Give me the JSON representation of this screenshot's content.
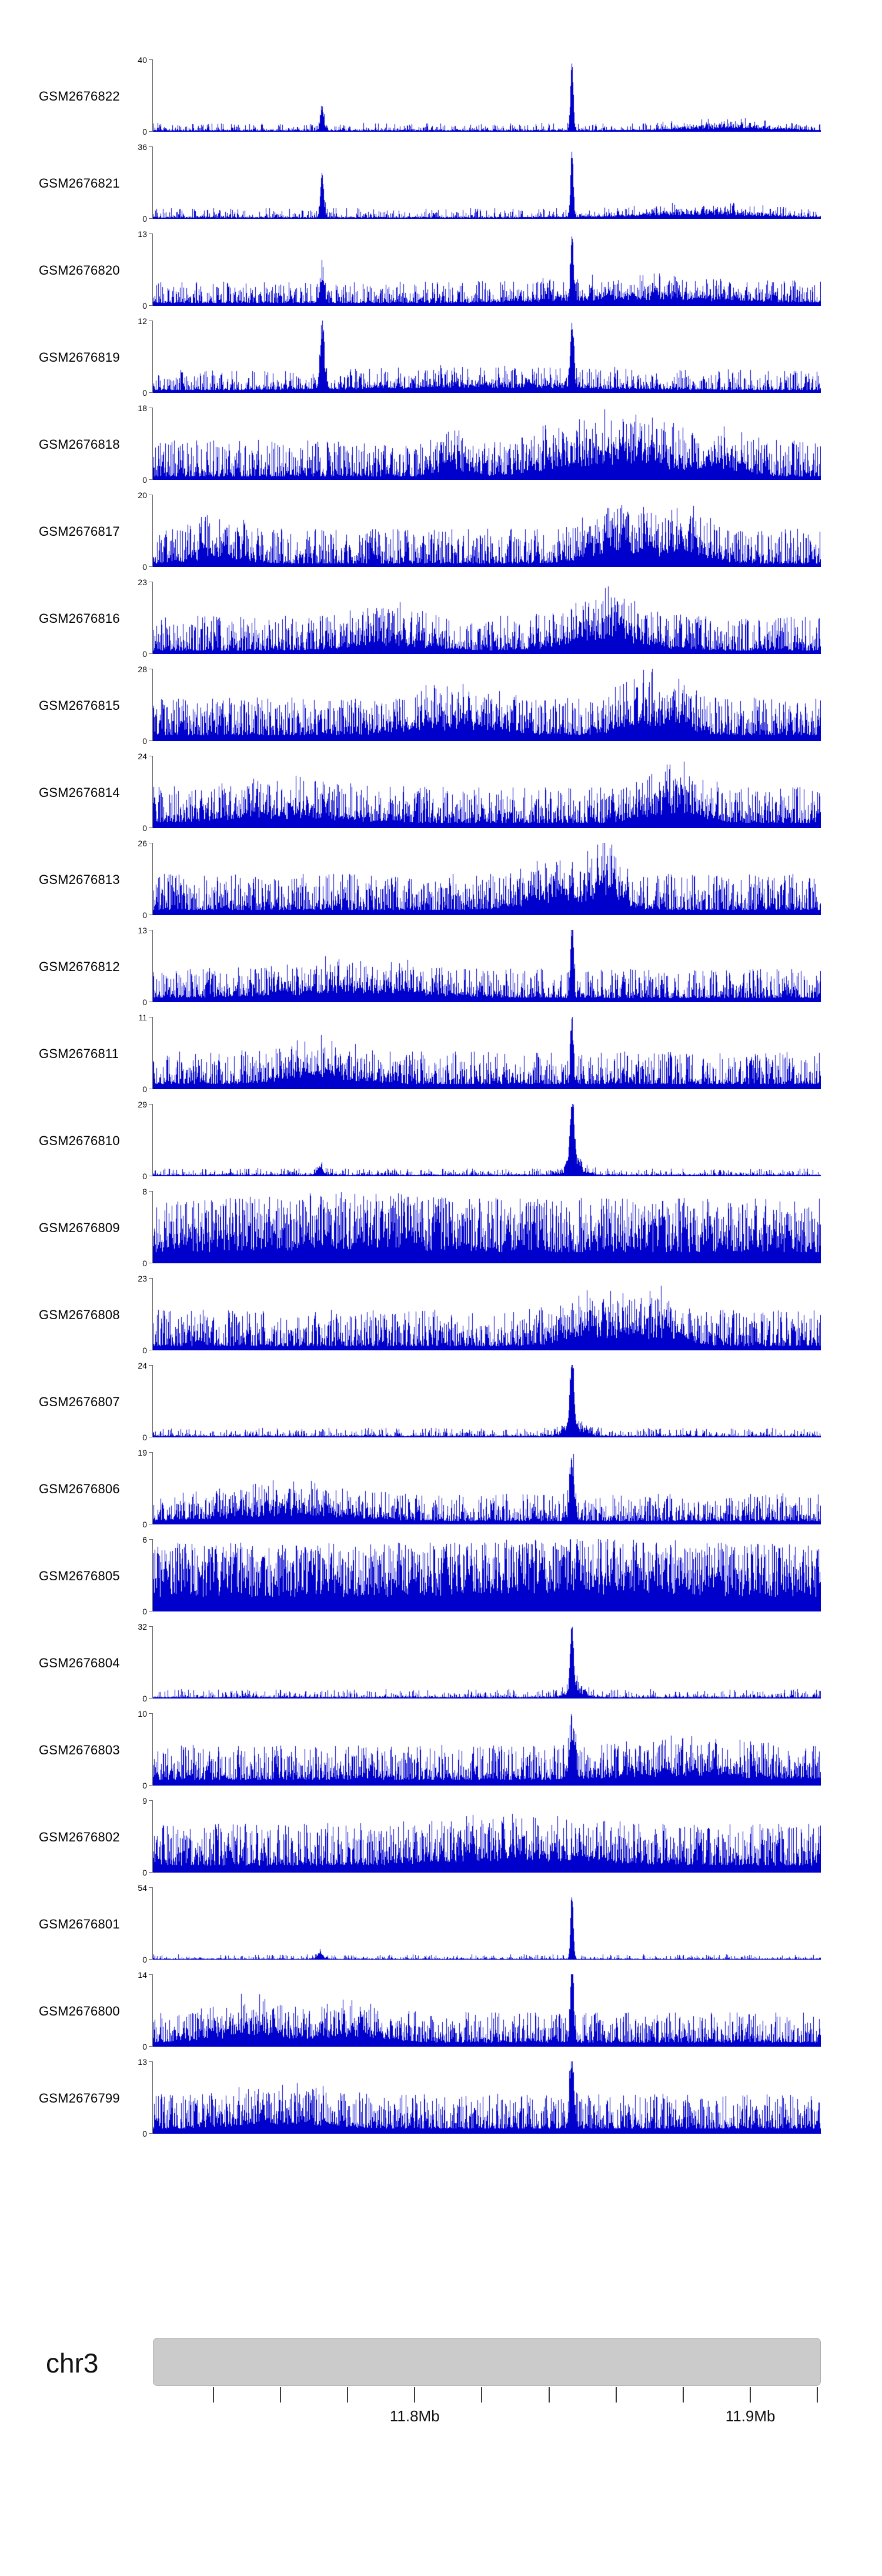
{
  "chart_data": {
    "type": "area",
    "title": "",
    "description": "Genome browser signal tracks (coverage histograms) for 24 GSM samples over a region of chromosome 3",
    "signal_color": "#0000cc",
    "region": {
      "chromosome": "chr3",
      "start_mb": 11.722,
      "end_mb": 11.921
    },
    "axis": {
      "zero_label": "0",
      "tick_interval_mb": 0.02,
      "labeled_ticks": [
        {
          "mb": 11.8,
          "label": "11.8Mb"
        },
        {
          "mb": 11.9,
          "label": "11.9Mb"
        }
      ]
    },
    "ideogram": {
      "label": "chr3",
      "color": "#cbcbcb"
    },
    "tracks": [
      {
        "label": "GSM2676822",
        "ymax": 40,
        "floor": 0.02,
        "amp": 0.1,
        "exp": 5,
        "peaks": [
          {
            "x": 0.253,
            "h": 0.3,
            "w": 0.0025
          },
          {
            "x": 0.627,
            "h": 0.95,
            "w": 0.002
          },
          {
            "x": 0.86,
            "h": 0.1,
            "w": 0.06
          }
        ]
      },
      {
        "label": "GSM2676821",
        "ymax": 36,
        "floor": 0.02,
        "amp": 0.13,
        "exp": 4.5,
        "peaks": [
          {
            "x": 0.253,
            "h": 0.6,
            "w": 0.0025
          },
          {
            "x": 0.627,
            "h": 0.95,
            "w": 0.002
          },
          {
            "x": 0.82,
            "h": 0.12,
            "w": 0.08
          }
        ]
      },
      {
        "label": "GSM2676820",
        "ymax": 13,
        "floor": 0.04,
        "amp": 0.3,
        "exp": 2.8,
        "peaks": [
          {
            "x": 0.253,
            "h": 0.35,
            "w": 0.003
          },
          {
            "x": 0.627,
            "h": 0.92,
            "w": 0.002
          },
          {
            "x": 0.74,
            "h": 0.15,
            "w": 0.12
          }
        ]
      },
      {
        "label": "GSM2676819",
        "ymax": 12,
        "floor": 0.04,
        "amp": 0.28,
        "exp": 3,
        "peaks": [
          {
            "x": 0.253,
            "h": 0.8,
            "w": 0.003
          },
          {
            "x": 0.627,
            "h": 0.92,
            "w": 0.0025
          },
          {
            "x": 0.5,
            "h": 0.1,
            "w": 0.15
          }
        ]
      },
      {
        "label": "GSM2676818",
        "ymax": 18,
        "floor": 0.05,
        "amp": 0.5,
        "exp": 2.2,
        "peaks": [
          {
            "x": 0.45,
            "h": 0.3,
            "w": 0.02
          },
          {
            "x": 0.63,
            "h": 0.4,
            "w": 0.05
          },
          {
            "x": 0.73,
            "h": 0.5,
            "w": 0.04
          },
          {
            "x": 0.85,
            "h": 0.35,
            "w": 0.03
          }
        ]
      },
      {
        "label": "GSM2676817",
        "ymax": 20,
        "floor": 0.05,
        "amp": 0.48,
        "exp": 2.2,
        "peaks": [
          {
            "x": 0.1,
            "h": 0.3,
            "w": 0.03
          },
          {
            "x": 0.7,
            "h": 0.55,
            "w": 0.04
          },
          {
            "x": 0.8,
            "h": 0.4,
            "w": 0.03
          }
        ]
      },
      {
        "label": "GSM2676816",
        "ymax": 23,
        "floor": 0.05,
        "amp": 0.48,
        "exp": 2.2,
        "peaks": [
          {
            "x": 0.35,
            "h": 0.25,
            "w": 0.05
          },
          {
            "x": 0.68,
            "h": 0.5,
            "w": 0.05
          }
        ]
      },
      {
        "label": "GSM2676815",
        "ymax": 28,
        "floor": 0.08,
        "amp": 0.52,
        "exp": 1.9,
        "peaks": [
          {
            "x": 0.45,
            "h": 0.28,
            "w": 0.06
          },
          {
            "x": 0.75,
            "h": 0.45,
            "w": 0.04
          }
        ]
      },
      {
        "label": "GSM2676814",
        "ymax": 24,
        "floor": 0.07,
        "amp": 0.5,
        "exp": 2,
        "peaks": [
          {
            "x": 0.2,
            "h": 0.2,
            "w": 0.08
          },
          {
            "x": 0.78,
            "h": 0.5,
            "w": 0.035
          }
        ]
      },
      {
        "label": "GSM2676813",
        "ymax": 26,
        "floor": 0.07,
        "amp": 0.5,
        "exp": 2,
        "peaks": [
          {
            "x": 0.62,
            "h": 0.35,
            "w": 0.05
          },
          {
            "x": 0.68,
            "h": 0.55,
            "w": 0.015
          }
        ]
      },
      {
        "label": "GSM2676812",
        "ymax": 13,
        "floor": 0.06,
        "amp": 0.4,
        "exp": 2.3,
        "peaks": [
          {
            "x": 0.3,
            "h": 0.2,
            "w": 0.1
          },
          {
            "x": 0.627,
            "h": 0.92,
            "w": 0.002
          }
        ]
      },
      {
        "label": "GSM2676811",
        "ymax": 11,
        "floor": 0.07,
        "amp": 0.45,
        "exp": 2.2,
        "peaks": [
          {
            "x": 0.25,
            "h": 0.28,
            "w": 0.05
          },
          {
            "x": 0.627,
            "h": 0.88,
            "w": 0.002
          }
        ]
      },
      {
        "label": "GSM2676810",
        "ymax": 29,
        "floor": 0.02,
        "amp": 0.09,
        "exp": 5,
        "peaks": [
          {
            "x": 0.25,
            "h": 0.12,
            "w": 0.004
          },
          {
            "x": 0.627,
            "h": 0.95,
            "w": 0.003
          },
          {
            "x": 0.63,
            "h": 0.3,
            "w": 0.012
          }
        ]
      },
      {
        "label": "GSM2676809",
        "ymax": 8,
        "floor": 0.15,
        "amp": 0.75,
        "exp": 1.25,
        "peaks": [
          {
            "x": 0.3,
            "h": 0.12,
            "w": 0.1
          }
        ]
      },
      {
        "label": "GSM2676808",
        "ymax": 23,
        "floor": 0.06,
        "amp": 0.5,
        "exp": 2,
        "peaks": [
          {
            "x": 0.66,
            "h": 0.45,
            "w": 0.04
          },
          {
            "x": 0.76,
            "h": 0.35,
            "w": 0.03
          }
        ]
      },
      {
        "label": "GSM2676807",
        "ymax": 24,
        "floor": 0.02,
        "amp": 0.11,
        "exp": 4.5,
        "peaks": [
          {
            "x": 0.627,
            "h": 0.93,
            "w": 0.003
          },
          {
            "x": 0.632,
            "h": 0.25,
            "w": 0.014
          }
        ]
      },
      {
        "label": "GSM2676806",
        "ymax": 19,
        "floor": 0.05,
        "amp": 0.38,
        "exp": 2.4,
        "peaks": [
          {
            "x": 0.2,
            "h": 0.25,
            "w": 0.08
          },
          {
            "x": 0.627,
            "h": 0.8,
            "w": 0.003
          }
        ]
      },
      {
        "label": "GSM2676805",
        "ymax": 6,
        "floor": 0.2,
        "amp": 0.75,
        "exp": 1.1,
        "peaks": [
          {
            "x": 0.65,
            "h": 0.12,
            "w": 0.1
          }
        ]
      },
      {
        "label": "GSM2676804",
        "ymax": 32,
        "floor": 0.02,
        "amp": 0.11,
        "exp": 4.5,
        "peaks": [
          {
            "x": 0.627,
            "h": 0.93,
            "w": 0.0025
          },
          {
            "x": 0.632,
            "h": 0.2,
            "w": 0.012
          }
        ]
      },
      {
        "label": "GSM2676803",
        "ymax": 10,
        "floor": 0.08,
        "amp": 0.48,
        "exp": 2,
        "peaks": [
          {
            "x": 0.627,
            "h": 0.6,
            "w": 0.004
          },
          {
            "x": 0.8,
            "h": 0.18,
            "w": 0.08
          }
        ]
      },
      {
        "label": "GSM2676802",
        "ymax": 9,
        "floor": 0.1,
        "amp": 0.58,
        "exp": 1.7,
        "peaks": [
          {
            "x": 0.55,
            "h": 0.22,
            "w": 0.1
          }
        ]
      },
      {
        "label": "GSM2676801",
        "ymax": 54,
        "floor": 0.012,
        "amp": 0.06,
        "exp": 6,
        "peaks": [
          {
            "x": 0.25,
            "h": 0.08,
            "w": 0.004
          },
          {
            "x": 0.627,
            "h": 0.96,
            "w": 0.002
          }
        ]
      },
      {
        "label": "GSM2676800",
        "ymax": 14,
        "floor": 0.06,
        "amp": 0.42,
        "exp": 2.2,
        "peaks": [
          {
            "x": 0.15,
            "h": 0.3,
            "w": 0.05
          },
          {
            "x": 0.3,
            "h": 0.25,
            "w": 0.04
          },
          {
            "x": 0.627,
            "h": 0.88,
            "w": 0.0025
          }
        ]
      },
      {
        "label": "GSM2676799",
        "ymax": 13,
        "floor": 0.07,
        "amp": 0.48,
        "exp": 2,
        "peaks": [
          {
            "x": 0.2,
            "h": 0.2,
            "w": 0.06
          },
          {
            "x": 0.627,
            "h": 0.85,
            "w": 0.003
          }
        ]
      }
    ]
  }
}
